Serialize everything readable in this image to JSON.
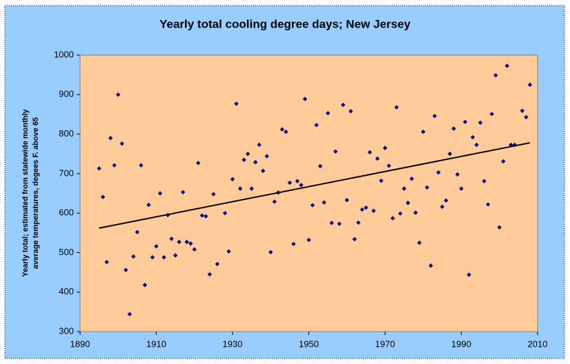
{
  "chart_data": {
    "type": "scatter",
    "title": "Yearly total cooling degree days; New Jersey",
    "y_label": [
      "Yearly total; estimated from statewide monthly",
      "average temperatures, degees F. above 65"
    ],
    "x": [
      1895,
      1896,
      1897,
      1898,
      1899,
      1900,
      1901,
      1902,
      1903,
      1904,
      1905,
      1906,
      1907,
      1908,
      1909,
      1910,
      1911,
      1912,
      1913,
      1914,
      1915,
      1916,
      1917,
      1918,
      1919,
      1920,
      1921,
      1922,
      1923,
      1924,
      1925,
      1926,
      1928,
      1929,
      1930,
      1931,
      1932,
      1933,
      1934,
      1935,
      1936,
      1937,
      1938,
      1939,
      1940,
      1941,
      1942,
      1943,
      1944,
      1945,
      1946,
      1947,
      1948,
      1949,
      1950,
      1951,
      1952,
      1953,
      1954,
      1955,
      1956,
      1957,
      1958,
      1959,
      1960,
      1961,
      1962,
      1963,
      1964,
      1965,
      1966,
      1967,
      1968,
      1969,
      1970,
      1971,
      1972,
      1973,
      1974,
      1975,
      1976,
      1977,
      1978,
      1979,
      1980,
      1981,
      1982,
      1983,
      1984,
      1985,
      1986,
      1987,
      1988,
      1989,
      1990,
      1991,
      1992,
      1993,
      1994,
      1995,
      1996,
      1997,
      1998,
      1999,
      2000,
      2001,
      2002,
      2003,
      2004,
      2006,
      2007,
      2008
    ],
    "values": [
      713,
      641,
      476,
      790,
      721,
      900,
      776,
      456,
      344,
      490,
      552,
      721,
      418,
      621,
      488,
      516,
      650,
      488,
      595,
      535,
      493,
      527,
      653,
      527,
      523,
      508,
      727,
      594,
      592,
      445,
      648,
      471,
      600,
      503,
      686,
      877,
      662,
      735,
      750,
      662,
      729,
      773,
      707,
      744,
      501,
      629,
      652,
      812,
      806,
      677,
      522,
      681,
      671,
      889,
      532,
      620,
      823,
      719,
      627,
      853,
      575,
      756,
      573,
      874,
      633,
      858,
      534,
      576,
      609,
      614,
      754,
      606,
      738,
      682,
      765,
      720,
      587,
      868,
      599,
      662,
      626,
      687,
      601,
      525,
      806,
      665,
      467,
      846,
      703,
      616,
      632,
      750,
      814,
      698,
      662,
      831,
      444,
      792,
      773,
      829,
      681,
      622,
      851,
      949,
      564,
      731,
      973,
      773,
      773,
      859,
      843,
      925
    ],
    "color": "#000080",
    "trendline": {
      "x": [
        1895,
        2008
      ],
      "values": [
        562,
        778
      ],
      "color": "#000000"
    },
    "xlim": [
      1890,
      2010
    ],
    "xticks": [
      1890,
      1910,
      1930,
      1950,
      1970,
      1990,
      2010
    ],
    "ylim": [
      300,
      1000
    ],
    "yticks": [
      300,
      400,
      500,
      600,
      700,
      800,
      900,
      1000
    ],
    "grid": false
  }
}
